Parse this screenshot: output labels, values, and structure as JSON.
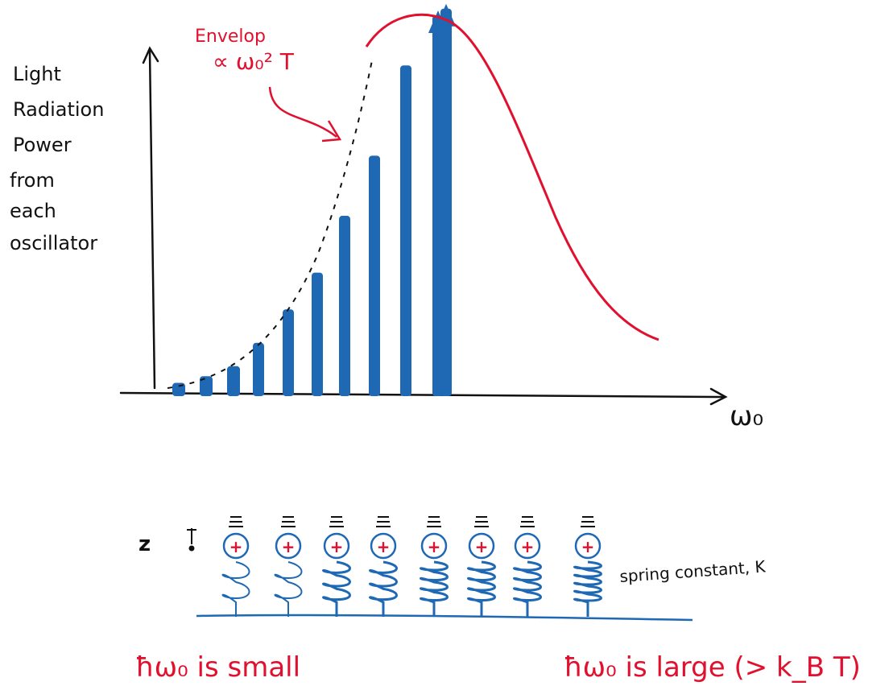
{
  "axes": {
    "y_label_lines": [
      "Light",
      "Radiation",
      "Power",
      "from",
      "each",
      "oscillator"
    ],
    "x_label": "ω₀"
  },
  "envelope_note": {
    "line1": "Envelop",
    "line2": "∝ ω₀² T"
  },
  "chart_data": {
    "type": "bar",
    "bar_heights_rel": [
      0.03,
      0.05,
      0.08,
      0.15,
      0.25,
      0.36,
      0.53,
      0.71,
      0.98,
      1.13,
      1.15
    ],
    "bar_arrows": [
      false,
      false,
      false,
      false,
      false,
      false,
      false,
      false,
      false,
      true,
      true
    ],
    "envelope_dashed": "∝ ω₀² T",
    "curve_peak_rel": 1.15
  },
  "oscillators": {
    "axis_label": "z",
    "charge_symbol": "+",
    "count": 8,
    "spring_label": "spring constant, K"
  },
  "captions": {
    "left": "ħω₀ is small",
    "right": "ħω₀ is large (> k_B T)"
  },
  "colors": {
    "bar": "#1f68b4",
    "curve": "#e0102e",
    "ink": "#111111"
  }
}
